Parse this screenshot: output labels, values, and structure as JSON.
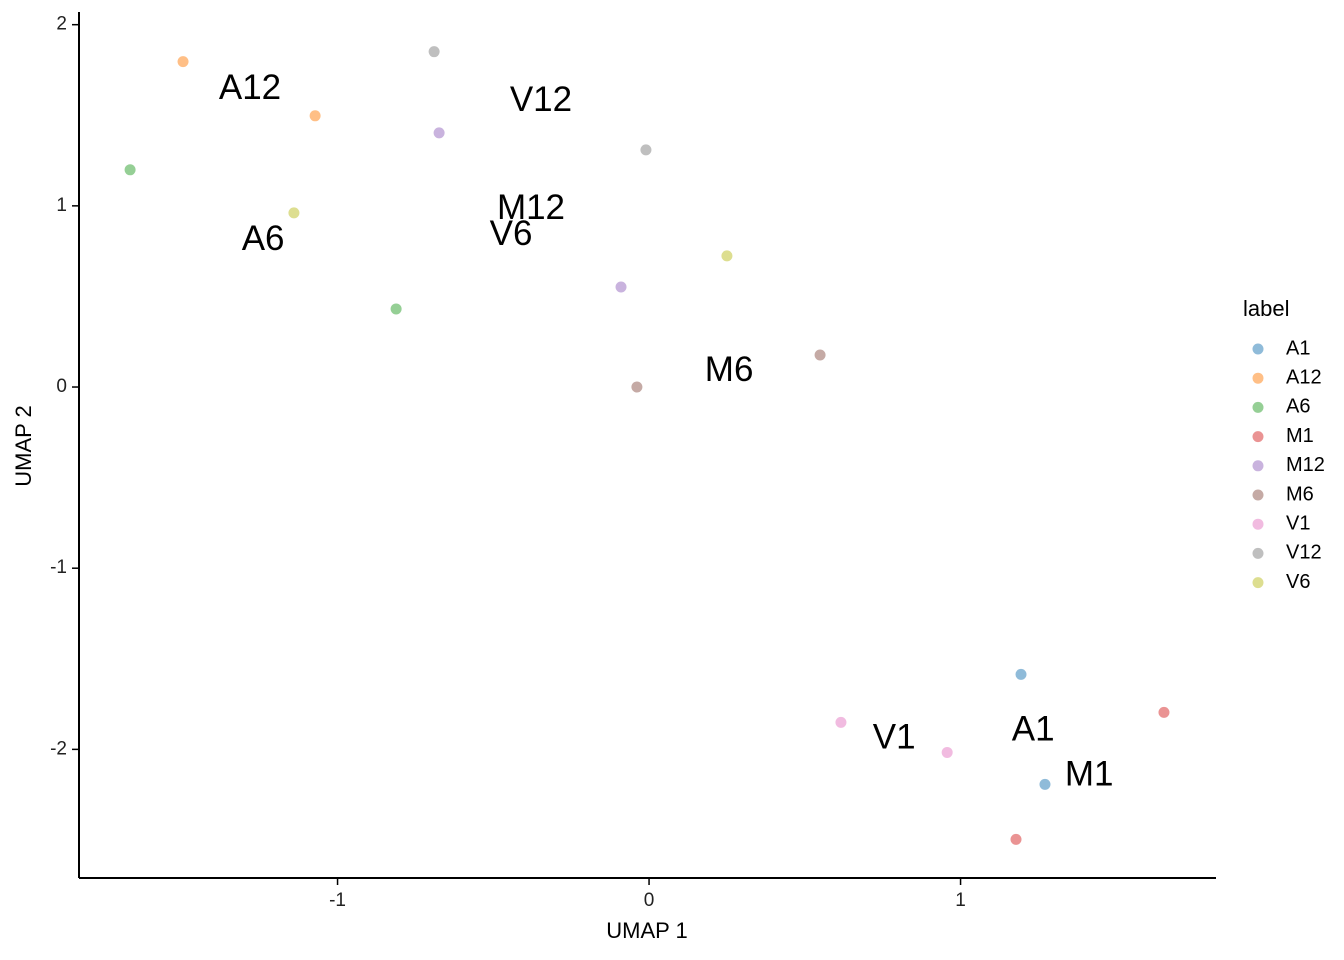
{
  "chart_data": {
    "type": "scatter",
    "xlabel": "UMAP 1",
    "ylabel": "UMAP 2",
    "xlim": [
      -1.83,
      1.82
    ],
    "ylim": [
      -2.71,
      2.07
    ],
    "xticks": [
      -1,
      0,
      1
    ],
    "yticks": [
      -2,
      -1,
      0,
      1,
      2
    ],
    "legend_title": "label",
    "legend_position": "right",
    "series": [
      {
        "name": "A1",
        "color": "#1f77b4",
        "x": [
          1.194,
          1.271
        ],
        "y": [
          -1.586,
          -2.193
        ]
      },
      {
        "name": "A12",
        "color": "#ff7f0e",
        "x": [
          -1.496,
          -1.072
        ],
        "y": [
          1.796,
          1.497
        ]
      },
      {
        "name": "A6",
        "color": "#2ca02c",
        "x": [
          -1.666,
          -0.812
        ],
        "y": [
          1.199,
          0.431
        ]
      },
      {
        "name": "M1",
        "color": "#d62728",
        "x": [
          1.653,
          1.178
        ],
        "y": [
          -1.796,
          -2.497
        ]
      },
      {
        "name": "M12",
        "color": "#9467bd",
        "x": [
          -0.674,
          -0.09
        ],
        "y": [
          1.403,
          0.552
        ]
      },
      {
        "name": "M6",
        "color": "#8c564b",
        "x": [
          -0.039,
          0.549
        ],
        "y": [
          0.0,
          0.177
        ]
      },
      {
        "name": "V1",
        "color": "#e377c2",
        "x": [
          0.616,
          0.957
        ],
        "y": [
          -1.851,
          -2.017
        ]
      },
      {
        "name": "V12",
        "color": "#7f7f7f",
        "x": [
          -0.69,
          -0.01
        ],
        "y": [
          1.851,
          1.309
        ]
      },
      {
        "name": "V6",
        "color": "#bcbd22",
        "x": [
          -1.14,
          0.25
        ],
        "y": [
          0.961,
          0.724
        ]
      }
    ],
    "annotations": [
      {
        "text": "A12",
        "x": -1.281,
        "y": 1.641
      },
      {
        "text": "V12",
        "x": -0.347,
        "y": 1.575
      },
      {
        "text": "M12",
        "x": -0.379,
        "y": 0.978
      },
      {
        "text": "V6",
        "x": -0.443,
        "y": 0.834
      },
      {
        "text": "A6",
        "x": -1.239,
        "y": 0.807
      },
      {
        "text": "M6",
        "x": 0.257,
        "y": 0.083
      },
      {
        "text": "V1",
        "x": 0.787,
        "y": -1.945
      },
      {
        "text": "A1",
        "x": 1.233,
        "y": -1.901
      },
      {
        "text": "M1",
        "x": 1.413,
        "y": -2.149
      }
    ]
  }
}
